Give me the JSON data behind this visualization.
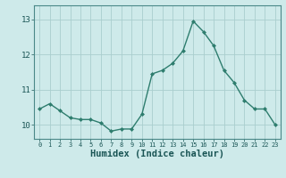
{
  "x": [
    0,
    1,
    2,
    3,
    4,
    5,
    6,
    7,
    8,
    9,
    10,
    11,
    12,
    13,
    14,
    15,
    16,
    17,
    18,
    19,
    20,
    21,
    22,
    23
  ],
  "y": [
    10.45,
    10.6,
    10.4,
    10.2,
    10.15,
    10.15,
    10.05,
    9.82,
    9.88,
    9.88,
    10.3,
    11.45,
    11.55,
    11.75,
    12.1,
    12.95,
    12.65,
    12.25,
    11.55,
    11.2,
    10.7,
    10.45,
    10.45,
    10.0
  ],
  "line_color": "#2e7d6e",
  "marker": "D",
  "markersize": 2.0,
  "linewidth": 1.0,
  "xlabel": "Humidex (Indice chaleur)",
  "xlabel_fontsize": 7.5,
  "ylim": [
    9.6,
    13.4
  ],
  "xlim": [
    -0.5,
    23.5
  ],
  "yticks": [
    10,
    11,
    12,
    13
  ],
  "xticks": [
    0,
    1,
    2,
    3,
    4,
    5,
    6,
    7,
    8,
    9,
    10,
    11,
    12,
    13,
    14,
    15,
    16,
    17,
    18,
    19,
    20,
    21,
    22,
    23
  ],
  "background_color": "#ceeaea",
  "grid_color": "#aacece",
  "tick_color": "#1a5555",
  "spine_color": "#4a8888"
}
